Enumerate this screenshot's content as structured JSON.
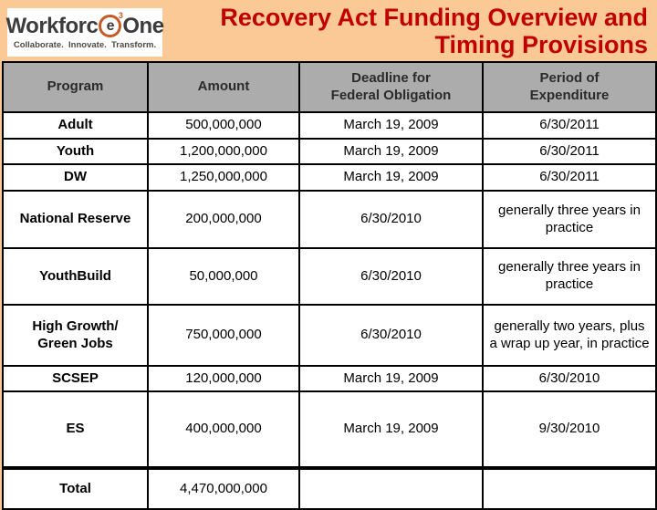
{
  "logo": {
    "brand_left": "Workforc",
    "brand_e": "e",
    "brand_sup": "3",
    "brand_right": "One",
    "tagline": "Collaborate.  Innovate.  Transform."
  },
  "title": {
    "text": "Recovery Act Funding Overview and\nTiming Provisions"
  },
  "colors": {
    "background_peach": "#FBC996",
    "title_red": "#C00000",
    "header_gray": "#ACACAC",
    "table_border": "#000000",
    "logo_orange": "#C75B28"
  },
  "table": {
    "headers": {
      "program": "Program",
      "amount": "Amount",
      "deadline": "Deadline for\nFederal Obligation",
      "period": "Period of\nExpenditure"
    },
    "rows": [
      {
        "program": "Adult",
        "amount": "500,000,000",
        "deadline": "March 19, 2009",
        "period": "6/30/2011"
      },
      {
        "program": "Youth",
        "amount": "1,200,000,000",
        "deadline": "March 19, 2009",
        "period": "6/30/2011"
      },
      {
        "program": "DW",
        "amount": "1,250,000,000",
        "deadline": "March 19, 2009",
        "period": "6/30/2011"
      },
      {
        "program": "National Reserve",
        "amount": "200,000,000",
        "deadline": "6/30/2010",
        "period": "generally three years in practice"
      },
      {
        "program": "YouthBuild",
        "amount": "50,000,000",
        "deadline": "6/30/2010",
        "period": "generally three years in practice"
      },
      {
        "program": "High Growth/\nGreen Jobs",
        "amount": "750,000,000",
        "deadline": "6/30/2010",
        "period": "generally two years, plus a wrap up year, in practice"
      },
      {
        "program": "SCSEP",
        "amount": "120,000,000",
        "deadline": "March 19, 2009",
        "period": "6/30/2010"
      },
      {
        "program": "ES",
        "amount": "400,000,000",
        "deadline": "March 19, 2009",
        "period": "9/30/2010"
      },
      {
        "program": "Total",
        "amount": "4,470,000,000",
        "deadline": "",
        "period": ""
      }
    ]
  }
}
